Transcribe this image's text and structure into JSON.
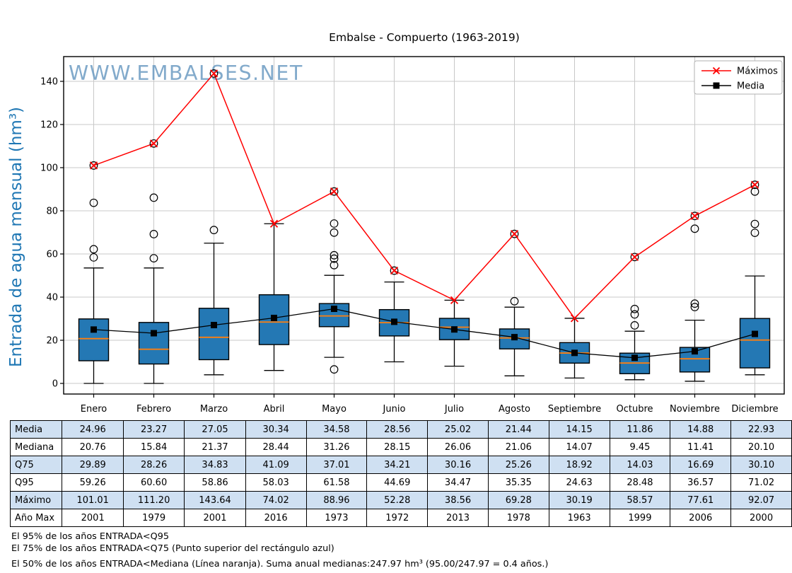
{
  "title": "Embalse - Compuerto (1963-2019)",
  "watermark": "WWW.EMBALSES.NET",
  "y_axis_label": "Entrada de agua mensual (hm³)",
  "legend": {
    "maximos": "Máximos",
    "media": "Media"
  },
  "colors": {
    "box_fill": "#2478b4",
    "box_edge": "#000000",
    "median_line": "#ff7f0e",
    "max_line": "#ff0000",
    "mean_line": "#000000",
    "axis_label_blue": "#1f77b4",
    "watermark_blue": "#6d9cc3",
    "grid": "#c8c8c8",
    "table_shaded_row": "#cfe0f2"
  },
  "chart_data": {
    "type": "boxplot-with-lines",
    "title": "Embalse - Compuerto (1963-2019)",
    "ylabel": "Entrada de agua mensual (hm³)",
    "categories": [
      "Enero",
      "Febrero",
      "Marzo",
      "Abril",
      "Mayo",
      "Junio",
      "Julio",
      "Agosto",
      "Septiembre",
      "Octubre",
      "Noviembre",
      "Diciembre"
    ],
    "yticks": [
      0,
      20,
      40,
      60,
      80,
      100,
      120,
      140
    ],
    "ylim": [
      -4.9,
      151.5
    ],
    "grid": true,
    "legend_position": "upper right",
    "series": [
      {
        "name": "Máximos",
        "type": "line",
        "color": "#ff0000",
        "marker": "x",
        "values": [
          101.01,
          111.2,
          143.64,
          74.02,
          88.96,
          52.28,
          38.56,
          69.28,
          30.19,
          58.57,
          77.61,
          92.07
        ]
      },
      {
        "name": "Media",
        "type": "line",
        "color": "#000000",
        "marker": "square",
        "values": [
          24.96,
          23.27,
          27.05,
          30.34,
          34.58,
          28.56,
          25.02,
          21.44,
          14.15,
          11.86,
          14.88,
          22.93
        ]
      }
    ],
    "boxes": {
      "q25": [
        10.5,
        9.0,
        11.0,
        18.0,
        26.3,
        22.0,
        20.3,
        16.0,
        9.4,
        4.5,
        5.3,
        7.2
      ],
      "median": [
        20.76,
        15.84,
        21.37,
        28.44,
        31.26,
        28.15,
        26.06,
        21.06,
        14.07,
        9.45,
        11.41,
        20.1
      ],
      "q75": [
        29.89,
        28.26,
        34.83,
        41.09,
        37.01,
        34.21,
        30.16,
        25.26,
        18.92,
        14.03,
        16.69,
        30.1
      ],
      "whisker_low": [
        0.0,
        0.0,
        4.0,
        6.0,
        12.1,
        10.0,
        8.0,
        3.5,
        2.5,
        1.7,
        1.0,
        4.0
      ],
      "whisker_high": [
        53.5,
        53.5,
        65.0,
        74.02,
        50.1,
        47.0,
        38.56,
        35.35,
        30.19,
        24.2,
        29.3,
        49.8
      ],
      "outliers": [
        [
          83.7,
          62.2,
          58.4
        ],
        [
          86.1,
          69.2,
          58.0
        ],
        [
          71.1
        ],
        [],
        [
          74.1,
          69.9,
          59.4,
          57.8,
          54.8,
          6.5
        ],
        [],
        [],
        [
          38.1
        ],
        [],
        [
          34.5,
          32.0,
          26.9
        ],
        [
          71.7,
          37.0,
          35.4
        ],
        [
          88.9,
          73.9,
          69.8
        ]
      ],
      "max_is_outlier": [
        true,
        true,
        true,
        false,
        true,
        true,
        false,
        true,
        false,
        true,
        true,
        true
      ]
    }
  },
  "table": {
    "row_labels": [
      "Media",
      "Mediana",
      "Q75",
      "Q95",
      "Máximo",
      "Año Max"
    ],
    "shaded_rows": [
      0,
      2,
      4
    ],
    "rows": [
      [
        "24.96",
        "23.27",
        "27.05",
        "30.34",
        "34.58",
        "28.56",
        "25.02",
        "21.44",
        "14.15",
        "11.86",
        "14.88",
        "22.93"
      ],
      [
        "20.76",
        "15.84",
        "21.37",
        "28.44",
        "31.26",
        "28.15",
        "26.06",
        "21.06",
        "14.07",
        "9.45",
        "11.41",
        "20.10"
      ],
      [
        "29.89",
        "28.26",
        "34.83",
        "41.09",
        "37.01",
        "34.21",
        "30.16",
        "25.26",
        "18.92",
        "14.03",
        "16.69",
        "30.10"
      ],
      [
        "59.26",
        "60.60",
        "58.86",
        "58.03",
        "61.58",
        "44.69",
        "34.47",
        "35.35",
        "24.63",
        "28.48",
        "36.57",
        "71.02"
      ],
      [
        "101.01",
        "111.20",
        "143.64",
        "74.02",
        "88.96",
        "52.28",
        "38.56",
        "69.28",
        "30.19",
        "58.57",
        "77.61",
        "92.07"
      ],
      [
        "2001",
        "1979",
        "2001",
        "2016",
        "1973",
        "1972",
        "2013",
        "1978",
        "1963",
        "1999",
        "2006",
        "2000"
      ]
    ]
  },
  "footnotes": [
    "El 95% de los años ENTRADA<Q95",
    "El 75% de los años ENTRADA<Q75 (Punto superior del rectángulo azul)",
    "El 50% de los años ENTRADA<Mediana (Línea naranja). Suma anual medianas:247.97 hm³ (95.00/247.97 = 0.4 años.)"
  ]
}
